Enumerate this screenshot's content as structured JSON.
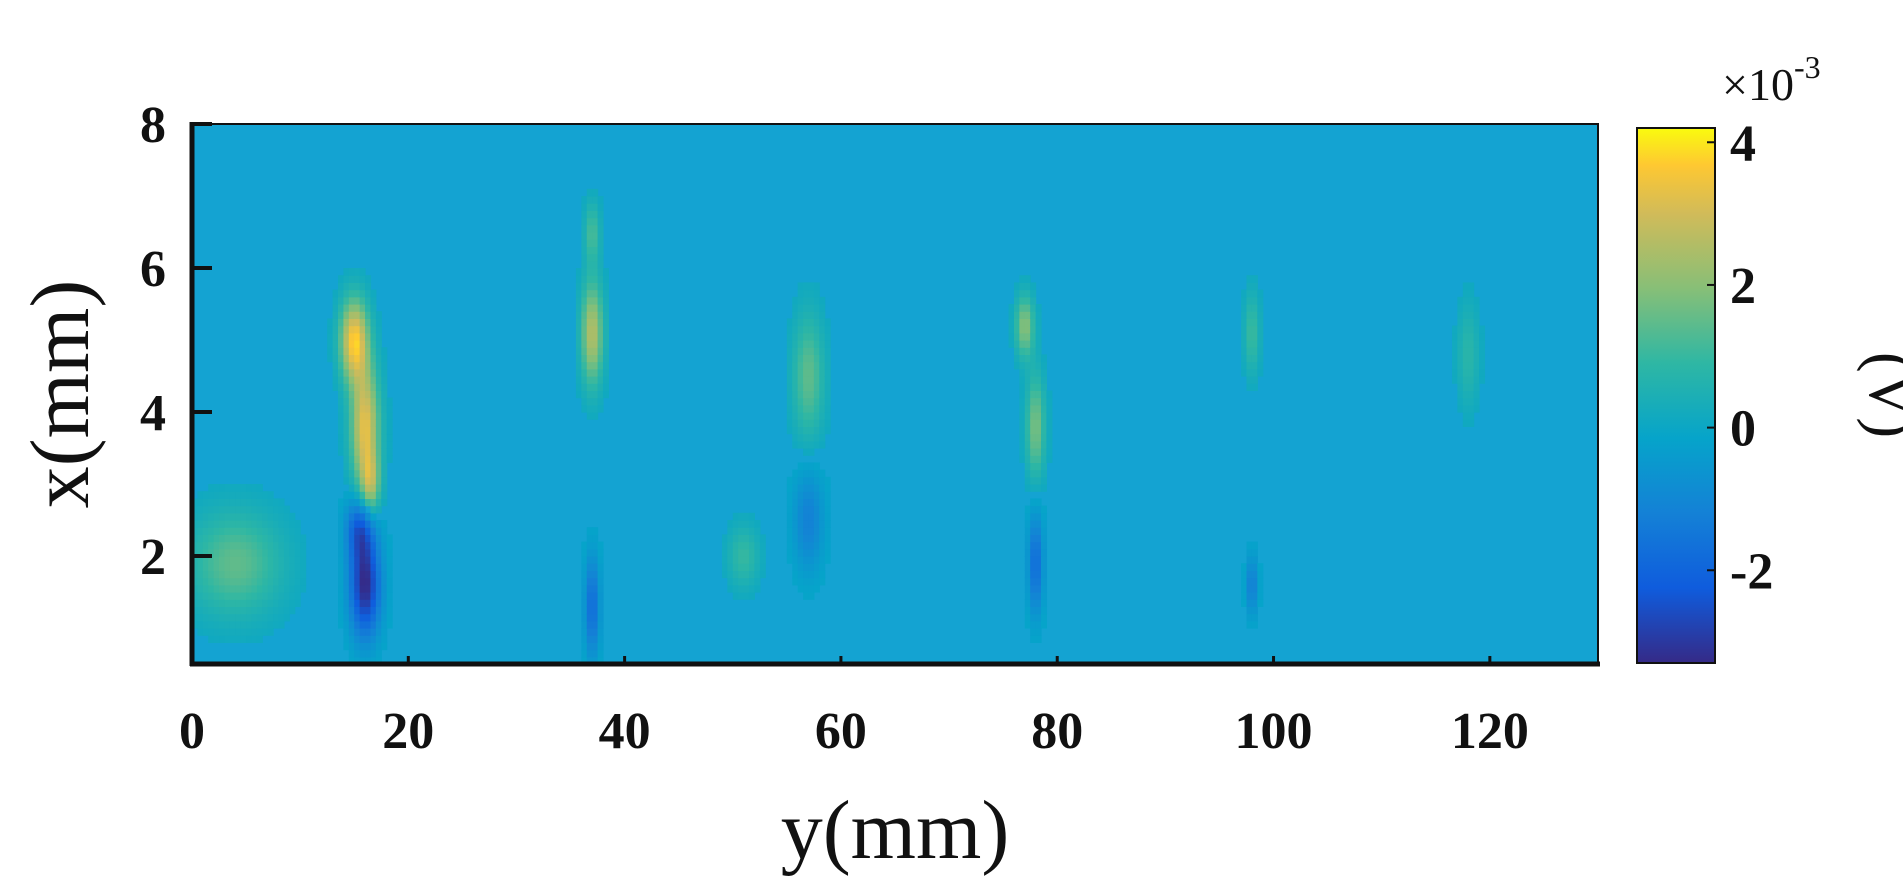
{
  "chart_data": {
    "type": "heatmap",
    "title": "",
    "xlabel": "y(mm)",
    "ylabel": "x(mm)",
    "xlim": [
      0,
      130
    ],
    "ylim": [
      0.5,
      8
    ],
    "xticks": [
      0,
      20,
      40,
      60,
      80,
      100,
      120
    ],
    "yticks": [
      2,
      4,
      6,
      8
    ],
    "xtick_labels": [
      "0",
      "20",
      "40",
      "60",
      "80",
      "100",
      "120"
    ],
    "ytick_labels": [
      "2",
      "4",
      "6",
      "8"
    ],
    "colormap": "parula",
    "background_value": 0,
    "colorbar": {
      "label": "(V)",
      "exponent_label": "×10",
      "exponent_power": "-3",
      "range": [
        -3.3,
        4.2
      ],
      "ticks": [
        -2,
        0,
        2,
        4
      ],
      "tick_labels": [
        "-2",
        "0",
        "2",
        "4"
      ]
    },
    "features": [
      {
        "y": 15,
        "x": 5.0,
        "sy": 0.9,
        "sx": 0.4,
        "value": 3.6
      },
      {
        "y": 16,
        "x": 3.8,
        "sy": 0.9,
        "sx": 0.6,
        "value": 3.3
      },
      {
        "y": 16.5,
        "x": 3.0,
        "sy": 0.6,
        "sx": 0.3,
        "value": 2.0
      },
      {
        "y": 15.5,
        "x": 2.4,
        "sy": 0.9,
        "sx": 0.3,
        "value": -2.0
      },
      {
        "y": 16,
        "x": 1.6,
        "sy": 1.0,
        "sx": 0.5,
        "value": -3.3
      },
      {
        "y": 4,
        "x": 1.9,
        "sy": 3.0,
        "sx": 0.5,
        "value": 1.5
      },
      {
        "y": 37,
        "x": 5.1,
        "sy": 0.7,
        "sx": 0.5,
        "value": 2.6
      },
      {
        "y": 37,
        "x": 6.5,
        "sy": 0.5,
        "sx": 0.3,
        "value": 1.2
      },
      {
        "y": 37,
        "x": 1.3,
        "sy": 0.5,
        "sx": 0.5,
        "value": -1.8
      },
      {
        "y": 57,
        "x": 4.5,
        "sy": 1.0,
        "sx": 0.6,
        "value": 1.5
      },
      {
        "y": 57,
        "x": 2.5,
        "sy": 1.0,
        "sx": 0.5,
        "value": -1.2
      },
      {
        "y": 51,
        "x": 2.0,
        "sy": 1.0,
        "sx": 0.3,
        "value": 1.0
      },
      {
        "y": 77,
        "x": 5.2,
        "sy": 0.6,
        "sx": 0.3,
        "value": 2.0
      },
      {
        "y": 78,
        "x": 3.8,
        "sy": 0.6,
        "sx": 0.5,
        "value": 1.8
      },
      {
        "y": 78,
        "x": 1.9,
        "sy": 0.5,
        "sx": 0.5,
        "value": -1.8
      },
      {
        "y": 98,
        "x": 5.1,
        "sy": 0.5,
        "sx": 0.4,
        "value": 1.1
      },
      {
        "y": 98,
        "x": 1.6,
        "sy": 0.4,
        "sx": 0.3,
        "value": -1.3
      },
      {
        "y": 118,
        "x": 4.8,
        "sy": 0.7,
        "sx": 0.5,
        "value": 0.8
      }
    ]
  }
}
